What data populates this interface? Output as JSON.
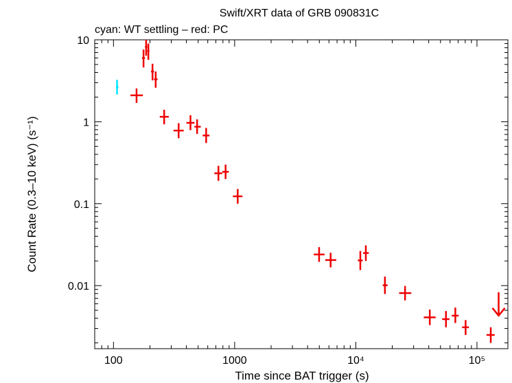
{
  "chart_data": {
    "type": "scatter",
    "title": "Swift/XRT data of GRB 090831C",
    "subtitle": "cyan: WT settling – red: PC",
    "xlabel": "Time since BAT trigger (s)",
    "ylabel": "Count Rate (0.3–10 keV) (s⁻¹)",
    "x_scale": "log",
    "y_scale": "log",
    "xlim": [
      70,
      180000
    ],
    "ylim": [
      0.0017,
      10
    ],
    "x_ticks": [
      {
        "value": 100,
        "label": "100"
      },
      {
        "value": 1000,
        "label": "1000"
      },
      {
        "value": 10000,
        "label": "10⁴"
      },
      {
        "value": 100000,
        "label": "10⁵"
      }
    ],
    "y_ticks": [
      {
        "value": 10,
        "label": "10"
      },
      {
        "value": 1,
        "label": "1"
      },
      {
        "value": 0.1,
        "label": "0.1"
      },
      {
        "value": 0.01,
        "label": "0.01"
      }
    ],
    "grid": false,
    "series": [
      {
        "color": "#00e5ff",
        "points": [
          {
            "x": 107,
            "xlo": 105,
            "xhi": 110,
            "y": 2.65,
            "ylo": 2.15,
            "yhi": 3.25
          }
        ]
      },
      {
        "color": "#ee0000",
        "points": [
          {
            "x": 155,
            "xlo": 138,
            "xhi": 175,
            "y": 2.1,
            "ylo": 1.7,
            "yhi": 2.55
          },
          {
            "x": 177,
            "xlo": 172,
            "xhi": 182,
            "y": 6.0,
            "ylo": 4.6,
            "yhi": 7.6
          },
          {
            "x": 186,
            "xlo": 182,
            "xhi": 190,
            "y": 8.2,
            "ylo": 6.4,
            "yhi": 10.0
          },
          {
            "x": 194,
            "xlo": 190,
            "xhi": 198,
            "y": 7.3,
            "ylo": 5.7,
            "yhi": 9.0
          },
          {
            "x": 210,
            "xlo": 204,
            "xhi": 216,
            "y": 4.1,
            "ylo": 3.2,
            "yhi": 5.1
          },
          {
            "x": 223,
            "xlo": 216,
            "xhi": 231,
            "y": 3.3,
            "ylo": 2.6,
            "yhi": 4.1
          },
          {
            "x": 262,
            "xlo": 241,
            "xhi": 286,
            "y": 1.15,
            "ylo": 0.93,
            "yhi": 1.4
          },
          {
            "x": 345,
            "xlo": 313,
            "xhi": 380,
            "y": 0.78,
            "ylo": 0.63,
            "yhi": 0.96
          },
          {
            "x": 432,
            "xlo": 400,
            "xhi": 466,
            "y": 0.97,
            "ylo": 0.79,
            "yhi": 1.2
          },
          {
            "x": 490,
            "xlo": 466,
            "xhi": 525,
            "y": 0.87,
            "ylo": 0.71,
            "yhi": 1.07
          },
          {
            "x": 582,
            "xlo": 545,
            "xhi": 620,
            "y": 0.68,
            "ylo": 0.55,
            "yhi": 0.84
          },
          {
            "x": 735,
            "xlo": 680,
            "xhi": 790,
            "y": 0.235,
            "ylo": 0.19,
            "yhi": 0.29
          },
          {
            "x": 842,
            "xlo": 790,
            "xhi": 895,
            "y": 0.245,
            "ylo": 0.2,
            "yhi": 0.3
          },
          {
            "x": 1060,
            "xlo": 968,
            "xhi": 1160,
            "y": 0.123,
            "ylo": 0.1,
            "yhi": 0.151
          },
          {
            "x": 4980,
            "xlo": 4500,
            "xhi": 5520,
            "y": 0.024,
            "ylo": 0.0195,
            "yhi": 0.0295
          },
          {
            "x": 6200,
            "xlo": 5600,
            "xhi": 6900,
            "y": 0.0205,
            "ylo": 0.0167,
            "yhi": 0.0252
          },
          {
            "x": 10900,
            "xlo": 10400,
            "xhi": 11400,
            "y": 0.0203,
            "ylo": 0.0155,
            "yhi": 0.0265
          },
          {
            "x": 12100,
            "xlo": 11500,
            "xhi": 12800,
            "y": 0.025,
            "ylo": 0.02,
            "yhi": 0.031
          },
          {
            "x": 17400,
            "xlo": 16700,
            "xhi": 18300,
            "y": 0.0101,
            "ylo": 0.0079,
            "yhi": 0.0129
          },
          {
            "x": 25500,
            "xlo": 22800,
            "xhi": 28700,
            "y": 0.0081,
            "ylo": 0.0066,
            "yhi": 0.0099
          },
          {
            "x": 40800,
            "xlo": 36400,
            "xhi": 45600,
            "y": 0.0041,
            "ylo": 0.0033,
            "yhi": 0.0051
          },
          {
            "x": 55500,
            "xlo": 51600,
            "xhi": 59300,
            "y": 0.0039,
            "ylo": 0.0031,
            "yhi": 0.0049
          },
          {
            "x": 66300,
            "xlo": 62000,
            "xhi": 70600,
            "y": 0.0043,
            "ylo": 0.0035,
            "yhi": 0.0054
          },
          {
            "x": 80600,
            "xlo": 75400,
            "xhi": 85800,
            "y": 0.0031,
            "ylo": 0.0025,
            "yhi": 0.0038
          },
          {
            "x": 130000,
            "xlo": 120000,
            "xhi": 140000,
            "y": 0.0025,
            "ylo": 0.002,
            "yhi": 0.0031
          }
        ]
      }
    ],
    "upper_limits": [
      {
        "x": 151000,
        "y": 0.0083,
        "color": "#ee0000"
      }
    ]
  }
}
